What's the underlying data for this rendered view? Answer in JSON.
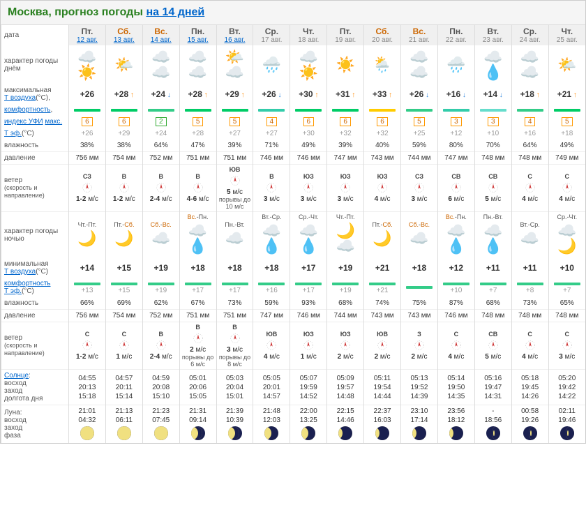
{
  "header": {
    "city": "Москва, прогноз погоды",
    "link_text": "на 14 дней"
  },
  "labels": {
    "date": "дата",
    "character_day": "характер погоды днём",
    "tmax": "максимальная",
    "tair": "Т воздуха",
    "comfort": "комфортность",
    "uvi": "индекс УФИ",
    "uvi_max": "макс.",
    "teff": "Т эф.",
    "humidity": "влажность",
    "pressure": "давление",
    "wind": "ветер",
    "wind_sub": "(скорость и направление)",
    "character_night": "характер погоды ночью",
    "tmin": "минимальная",
    "sun": "Солнце",
    "sunrise": "восход",
    "sunset": "заход",
    "daylength": "долгота дня",
    "moon": "Луна:",
    "moonrise": "восход",
    "moonset": "заход",
    "phase": "фаза",
    "deg_c": "(°C)",
    "deg_c2": "(°C)"
  },
  "days": [
    {
      "abbr": "Пт.",
      "weekend": false,
      "date": "12 авг.",
      "linked": true,
      "icon": "☁️☀️",
      "tmax": "+26",
      "trend": "",
      "bar": "#00cc66",
      "uvi": "6",
      "uvi_c": "o",
      "teff": "+26",
      "hum": "38%",
      "press": "756 мм",
      "wdir": "СЗ",
      "wspeed": "1-2",
      "unit": "м/с",
      "gust": "",
      "night": "Чт.-Пт.",
      "nicon": "🌙",
      "tmin": "+14",
      "nteff": "+13",
      "nhum": "66%",
      "npress": "756 мм",
      "nwdir": "С",
      "nwspeed": "1-2",
      "sunrise": "04:55",
      "sunset": "20:13",
      "daylen": "15:18",
      "moonrise": "21:01",
      "moonset": "04:32",
      "moon": "full"
    },
    {
      "abbr": "Сб.",
      "weekend": true,
      "date": "13 авг.",
      "linked": true,
      "icon": "🌤️",
      "tmax": "+28",
      "trend": "up",
      "bar": "#00cc66",
      "uvi": "6",
      "uvi_c": "o",
      "teff": "+29",
      "hum": "38%",
      "press": "754 мм",
      "wdir": "В",
      "wspeed": "1-2",
      "unit": "м/с",
      "gust": "",
      "night": "Пт.-Сб.",
      "nicon": "🌙",
      "tmin": "+15",
      "nteff": "+15",
      "nhum": "69%",
      "npress": "754 мм",
      "nwdir": "С",
      "nwspeed": "1",
      "sunrise": "04:57",
      "sunset": "20:11",
      "daylen": "15:14",
      "moonrise": "21:13",
      "moonset": "06:11",
      "moon": "full"
    },
    {
      "abbr": "Вс.",
      "weekend": true,
      "date": "14 авг.",
      "linked": true,
      "icon": "☁️☁️",
      "tmax": "+24",
      "trend": "down",
      "bar": "#33cc88",
      "uvi": "2",
      "uvi_c": "g",
      "teff": "+24",
      "hum": "64%",
      "press": "752 мм",
      "wdir": "В",
      "wspeed": "2-4",
      "unit": "м/с",
      "gust": "",
      "night": "Сб.-Вс.",
      "nicon": "☁️",
      "tmin": "+19",
      "nteff": "+19",
      "nhum": "62%",
      "npress": "752 мм",
      "nwdir": "В",
      "nwspeed": "2-4",
      "sunrise": "04:59",
      "sunset": "20:08",
      "daylen": "15:10",
      "moonrise": "21:23",
      "moonset": "07:45",
      "moon": "full"
    },
    {
      "abbr": "Пн.",
      "weekend": false,
      "date": "15 авг.",
      "linked": true,
      "icon": "☁️☁️",
      "tmax": "+28",
      "trend": "up",
      "bar": "#00cc66",
      "uvi": "5",
      "uvi_c": "o",
      "teff": "+28",
      "hum": "47%",
      "press": "751 мм",
      "wdir": "В",
      "wspeed": "4-6",
      "unit": "м/с",
      "gust": "",
      "night": "Вс.-Пн.",
      "nicon": "☁️💧",
      "tmin": "+18",
      "nteff": "+17",
      "nhum": "67%",
      "npress": "751 мм",
      "nwdir": "В",
      "nwspeed": "2",
      "ngust": "порывы до 6 м/с",
      "sunrise": "05:01",
      "sunset": "20:06",
      "daylen": "15:05",
      "moonrise": "21:31",
      "moonset": "09:14",
      "moon": "waning1"
    },
    {
      "abbr": "Вт.",
      "weekend": false,
      "date": "16 авг.",
      "linked": true,
      "icon": "🌤️☁️",
      "tmax": "+29",
      "trend": "up",
      "bar": "#00cc66",
      "uvi": "5",
      "uvi_c": "o",
      "teff": "+27",
      "hum": "39%",
      "press": "751 мм",
      "wdir": "ЮВ",
      "wspeed": "5",
      "unit": "м/с",
      "gust": "порывы до 10 м/с",
      "night": "Пн.-Вт.",
      "nicon": "☁️",
      "tmin": "+18",
      "nteff": "+17",
      "nhum": "73%",
      "npress": "751 мм",
      "nwdir": "В",
      "nwspeed": "3",
      "ngust": "порывы до 8 м/с",
      "sunrise": "05:03",
      "sunset": "20:04",
      "daylen": "15:01",
      "moonrise": "21:39",
      "moonset": "10:39",
      "moon": "waning1"
    },
    {
      "abbr": "Ср.",
      "weekend": false,
      "date": "17 авг.",
      "linked": false,
      "icon": "🌧️",
      "tmax": "+26",
      "trend": "down",
      "bar": "#33ccaa",
      "uvi": "4",
      "uvi_c": "o",
      "teff": "+27",
      "hum": "71%",
      "press": "746 мм",
      "wdir": "В",
      "wspeed": "3",
      "unit": "м/с",
      "gust": "",
      "night": "Вт.-Ср.",
      "nicon": "☁️💧",
      "tmin": "+18",
      "nteff": "+16",
      "nhum": "59%",
      "npress": "747 мм",
      "nwdir": "ЮВ",
      "nwspeed": "4",
      "sunrise": "05:05",
      "sunset": "20:01",
      "daylen": "14:57",
      "moonrise": "21:48",
      "moonset": "12:03",
      "moon": "waning2"
    },
    {
      "abbr": "Чт.",
      "weekend": false,
      "date": "18 авг.",
      "linked": false,
      "icon": "☁️☀️",
      "tmax": "+30",
      "trend": "up",
      "bar": "#00cc66",
      "uvi": "6",
      "uvi_c": "o",
      "teff": "+30",
      "hum": "49%",
      "press": "746 мм",
      "wdir": "ЮЗ",
      "wspeed": "3",
      "unit": "м/с",
      "gust": "",
      "night": "Ср.-Чт.",
      "nicon": "☁️💧",
      "tmin": "+17",
      "nteff": "+17",
      "nhum": "93%",
      "npress": "746 мм",
      "nwdir": "ЮЗ",
      "nwspeed": "1",
      "sunrise": "05:07",
      "sunset": "19:59",
      "daylen": "14:52",
      "moonrise": "22:00",
      "moonset": "13:25",
      "moon": "waning2"
    },
    {
      "abbr": "Пт.",
      "weekend": false,
      "date": "19 авг.",
      "linked": false,
      "icon": "☀️",
      "tmax": "+31",
      "trend": "up",
      "bar": "#00cc66",
      "uvi": "6",
      "uvi_c": "o",
      "teff": "+32",
      "hum": "39%",
      "press": "747 мм",
      "wdir": "ЮЗ",
      "wspeed": "3",
      "unit": "м/с",
      "gust": "",
      "night": "Чт.-Пт.",
      "nicon": "🌙☁️",
      "tmin": "+19",
      "nteff": "+19",
      "nhum": "68%",
      "npress": "744 мм",
      "nwdir": "ЮЗ",
      "nwspeed": "2",
      "sunrise": "05:09",
      "sunset": "19:57",
      "daylen": "14:48",
      "moonrise": "22:15",
      "moonset": "14:46",
      "moon": "last"
    },
    {
      "abbr": "Сб.",
      "weekend": true,
      "date": "20 авг.",
      "linked": false,
      "icon": "🌦️",
      "tmax": "+33",
      "trend": "up",
      "bar": "#ffcc00",
      "uvi": "6",
      "uvi_c": "o",
      "teff": "+32",
      "hum": "40%",
      "press": "743 мм",
      "wdir": "ЮЗ",
      "wspeed": "4",
      "unit": "м/с",
      "gust": "",
      "night": "Пт.-Сб.",
      "nicon": "🌙",
      "tmin": "+21",
      "nteff": "+21",
      "nhum": "74%",
      "npress": "743 мм",
      "nwdir": "ЮВ",
      "nwspeed": "2",
      "sunrise": "05:11",
      "sunset": "19:54",
      "daylen": "14:44",
      "moonrise": "22:37",
      "moonset": "16:03",
      "moon": "last"
    },
    {
      "abbr": "Вс.",
      "weekend": true,
      "date": "21 авг.",
      "linked": false,
      "icon": "☁️☁️",
      "tmax": "+26",
      "trend": "down",
      "bar": "#33cc88",
      "uvi": "5",
      "uvi_c": "o",
      "teff": "+25",
      "hum": "59%",
      "press": "744 мм",
      "wdir": "СЗ",
      "wspeed": "3",
      "unit": "м/с",
      "gust": "",
      "night": "Сб.-Вс.",
      "nicon": "☁️",
      "tmin": "+18",
      "nteff": "",
      "nhum": "75%",
      "npress": "743 мм",
      "nwdir": "З",
      "nwspeed": "2",
      "sunrise": "05:13",
      "sunset": "19:52",
      "daylen": "14:39",
      "moonrise": "23:10",
      "moonset": "17:14",
      "moon": "last"
    },
    {
      "abbr": "Пн.",
      "weekend": false,
      "date": "22 авг.",
      "linked": false,
      "icon": "🌧️",
      "tmax": "+16",
      "trend": "down",
      "bar": "#33ccaa",
      "uvi": "3",
      "uvi_c": "o",
      "teff": "+12",
      "hum": "80%",
      "press": "747 мм",
      "wdir": "СВ",
      "wspeed": "6",
      "unit": "м/с",
      "gust": "",
      "night": "Вс.-Пн.",
      "nicon": "☁️💧",
      "tmin": "+12",
      "nteff": "+10",
      "nhum": "87%",
      "npress": "746 мм",
      "nwdir": "С",
      "nwspeed": "4",
      "sunrise": "05:14",
      "sunset": "19:50",
      "daylen": "14:35",
      "moonrise": "23:56",
      "moonset": "18:12",
      "moon": "last"
    },
    {
      "abbr": "Вт.",
      "weekend": false,
      "date": "23 авг.",
      "linked": false,
      "icon": "☁️💧",
      "tmax": "+14",
      "trend": "down",
      "bar": "#66ddcc",
      "uvi": "3",
      "uvi_c": "o",
      "teff": "+10",
      "hum": "70%",
      "press": "748 мм",
      "wdir": "СВ",
      "wspeed": "5",
      "unit": "м/с",
      "gust": "",
      "night": "Пн.-Вт.",
      "nicon": "☁️💧",
      "tmin": "+11",
      "nteff": "+7",
      "nhum": "68%",
      "npress": "748 мм",
      "nwdir": "СВ",
      "nwspeed": "5",
      "sunrise": "05:16",
      "sunset": "19:47",
      "daylen": "14:31",
      "moonrise": "-",
      "moonset": "18:56",
      "moon": "crescent"
    },
    {
      "abbr": "Ср.",
      "weekend": false,
      "date": "24 авг.",
      "linked": false,
      "icon": "☁️☁️",
      "tmax": "+18",
      "trend": "up",
      "bar": "#33cc88",
      "uvi": "4",
      "uvi_c": "o",
      "teff": "+16",
      "hum": "64%",
      "press": "748 мм",
      "wdir": "С",
      "wspeed": "4",
      "unit": "м/с",
      "gust": "",
      "night": "Вт.-Ср.",
      "nicon": "☁️",
      "tmin": "+11",
      "nteff": "+8",
      "nhum": "73%",
      "npress": "748 мм",
      "nwdir": "С",
      "nwspeed": "4",
      "sunrise": "05:18",
      "sunset": "19:45",
      "daylen": "14:26",
      "moonrise": "00:58",
      "moonset": "19:26",
      "moon": "crescent"
    },
    {
      "abbr": "Чт.",
      "weekend": false,
      "date": "25 авг.",
      "linked": false,
      "icon": "🌤️",
      "tmax": "+21",
      "trend": "up",
      "bar": "#00cc66",
      "uvi": "5",
      "uvi_c": "o",
      "teff": "+18",
      "hum": "49%",
      "press": "749 мм",
      "wdir": "С",
      "wspeed": "4",
      "unit": "м/с",
      "gust": "",
      "night": "Ср.-Чт.",
      "nicon": "☁️🌙",
      "tmin": "+10",
      "nteff": "+7",
      "nhum": "65%",
      "npress": "748 мм",
      "nwdir": "С",
      "nwspeed": "3",
      "sunrise": "05:20",
      "sunset": "19:42",
      "daylen": "14:22",
      "moonrise": "02:11",
      "moonset": "19:46",
      "moon": "crescent"
    }
  ]
}
